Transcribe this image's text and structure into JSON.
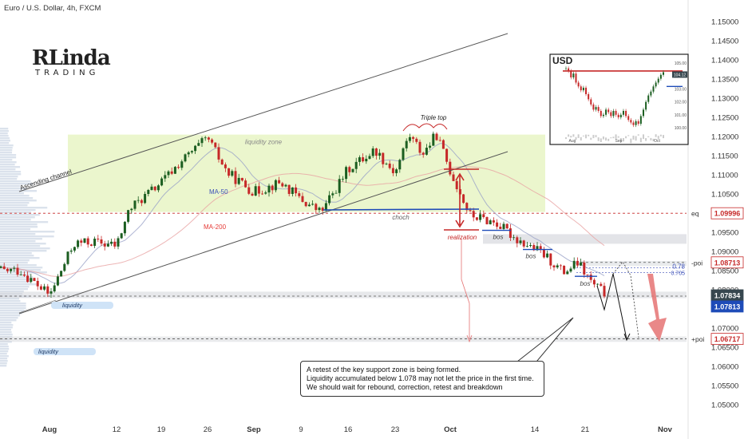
{
  "header": {
    "title": "Euro / U.S. Dollar, 4h, FXCM"
  },
  "logo": {
    "main": "RLinda",
    "sub": "TRADING"
  },
  "colors": {
    "up": "#1b5e20",
    "down": "#c62828",
    "ma50": "#3b4fb8",
    "ma200": "#e53935",
    "zone": "#e8f4c4",
    "accent": "#1565c0"
  },
  "annotation_note": {
    "line1": "A retest of the key support zone is being formed.",
    "line2": "Liquidity accumulated below 1.078 may not let the price in the first time.",
    "line3": "We should wait for rebound, correction, retest and breakdown"
  },
  "chart_data": [
    {
      "type": "candlestick",
      "title": "Euro / U.S. Dollar, 4h, FXCM",
      "y_axis": {
        "ylim": [
          1.0475,
          1.1525
        ],
        "ticks": [
          "1.15000",
          "1.14500",
          "1.14000",
          "1.13500",
          "1.13000",
          "1.12500",
          "1.12000",
          "1.11500",
          "1.11000",
          "1.10500",
          "1.10000",
          "1.09500",
          "1.09000",
          "1.08500",
          "1.08000",
          "1.07500",
          "1.07000",
          "1.06500",
          "1.06000",
          "1.05500",
          "1.05000"
        ]
      },
      "x_axis": {
        "ticks": [
          "Aug",
          "12",
          "19",
          "26",
          "Sep",
          "9",
          "16",
          "23",
          "Oct",
          "14",
          "21",
          "Nov"
        ]
      },
      "price_path": [
        {
          "date": "2024-07-29",
          "price": 1.085
        },
        {
          "date": "2024-08-01",
          "price": 1.0785
        },
        {
          "date": "2024-08-05",
          "price": 1.092
        },
        {
          "date": "2024-08-08",
          "price": 1.0925
        },
        {
          "date": "2024-08-12",
          "price": 1.0915
        },
        {
          "date": "2024-08-14",
          "price": 1.101
        },
        {
          "date": "2024-08-19",
          "price": 1.108
        },
        {
          "date": "2024-08-22",
          "price": 1.1135
        },
        {
          "date": "2024-08-26",
          "price": 1.1195
        },
        {
          "date": "2024-08-29",
          "price": 1.1105
        },
        {
          "date": "2024-09-02",
          "price": 1.1055
        },
        {
          "date": "2024-09-06",
          "price": 1.108
        },
        {
          "date": "2024-09-09",
          "price": 1.1035
        },
        {
          "date": "2024-09-12",
          "price": 1.1002
        },
        {
          "date": "2024-09-16",
          "price": 1.1115
        },
        {
          "date": "2024-09-20",
          "price": 1.1165
        },
        {
          "date": "2024-09-23",
          "price": 1.1105
        },
        {
          "date": "2024-09-25",
          "price": 1.1205
        },
        {
          "date": "2024-09-27",
          "price": 1.1155
        },
        {
          "date": "2024-09-29",
          "price": 1.1205
        },
        {
          "date": "2024-10-01",
          "price": 1.111
        },
        {
          "date": "2024-10-04",
          "price": 1.0995
        },
        {
          "date": "2024-10-08",
          "price": 1.0975
        },
        {
          "date": "2024-10-11",
          "price": 1.0935
        },
        {
          "date": "2024-10-15",
          "price": 1.0895
        },
        {
          "date": "2024-10-18",
          "price": 1.0845
        },
        {
          "date": "2024-10-20",
          "price": 1.087
        },
        {
          "date": "2024-10-22",
          "price": 1.0815
        },
        {
          "date": "2024-10-24",
          "price": 1.0788
        }
      ],
      "price_labels": [
        {
          "side": "eq",
          "value": "1.09996"
        },
        {
          "side": "-poi",
          "value": "1.08713"
        },
        {
          "side": "",
          "value": "1.07834"
        },
        {
          "side": "",
          "value": "1.07813"
        },
        {
          "side": "+poi",
          "value": "1.06717"
        }
      ],
      "levels": {
        "eq": 1.09996,
        "poi_upper": 1.08713,
        "support": 1.07834,
        "poi_lower": 1.06717
      },
      "ma_labels": {
        "ma50": "MA-50",
        "ma200": "MA-200"
      },
      "annotations": [
        "Ascending channel",
        "liquidity zone",
        "Triple top",
        "choch",
        "realization",
        "bos",
        "bos",
        "bos",
        "liquidity",
        "liquidity",
        "0.78",
        "0.705"
      ]
    },
    {
      "type": "line",
      "title": "USD",
      "x_axis": {
        "ticks": [
          "Aug",
          "Sep",
          "Oct"
        ]
      },
      "y_axis": {
        "ylim": [
          99.5,
          105.2
        ],
        "ticks": [
          "105.00",
          "104.00",
          "103.00",
          "102.00",
          "101.00",
          "100.00"
        ]
      },
      "last_value": "104.12",
      "series": [
        {
          "values": [
            104.6,
            104.4,
            103.9,
            104.2,
            103.5,
            103.2,
            102.9,
            103.1,
            102.6,
            102.2,
            101.8,
            101.4,
            101.6,
            101.3,
            100.9,
            101.0,
            101.4,
            101.2,
            100.9,
            101.3,
            101.0,
            100.8,
            101.0,
            101.3,
            100.9,
            100.6,
            100.4,
            100.2,
            100.5,
            100.3,
            100.9,
            101.4,
            102.0,
            102.5,
            102.8,
            103.2,
            103.5,
            103.8,
            104.1,
            104.3
          ]
        }
      ],
      "levels": [
        104.4,
        103.2
      ]
    }
  ]
}
